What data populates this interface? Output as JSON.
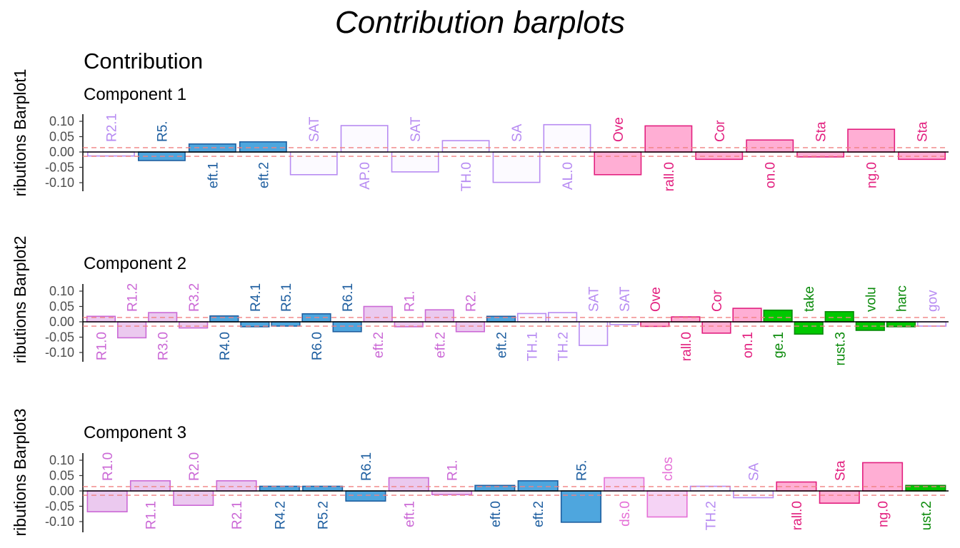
{
  "title": "Contribution barplots",
  "subtitle": "Contribution",
  "colors": {
    "lavender": "#b78bf2",
    "blue": "#1f5fa0",
    "pink": "#e2207f",
    "orchid": "#cb69d6",
    "green": "#0a8a0a",
    "rose": "#e56fd6"
  },
  "chart_data": [
    {
      "type": "bar",
      "panel_title": "Component 1",
      "ylabel": "ributions Barplot1",
      "yticks": [
        "0.10",
        "0.05",
        "0.00",
        "-0.05",
        "-0.10"
      ],
      "ylim": [
        -0.13,
        0.12
      ],
      "threshold": 0.014,
      "bars": [
        {
          "label": "R2.1",
          "value": -0.013,
          "color": "lavender"
        },
        {
          "label": "R5.",
          "value": -0.028,
          "color": "blue"
        },
        {
          "label": "eft.1",
          "value": 0.026,
          "color": "blue"
        },
        {
          "label": "eft.2",
          "value": 0.033,
          "color": "blue"
        },
        {
          "label": "SAT",
          "value": -0.074,
          "color": "lavender"
        },
        {
          "label": "AP.0",
          "value": 0.086,
          "color": "lavender"
        },
        {
          "label": "SAT",
          "value": -0.065,
          "color": "lavender"
        },
        {
          "label": "TH.0",
          "value": 0.037,
          "color": "lavender"
        },
        {
          "label": "SA",
          "value": -0.099,
          "color": "lavender"
        },
        {
          "label": "AL.0",
          "value": 0.089,
          "color": "lavender"
        },
        {
          "label": "Ove",
          "value": -0.074,
          "color": "pink"
        },
        {
          "label": "rall.0",
          "value": 0.085,
          "color": "pink"
        },
        {
          "label": "Cor",
          "value": -0.024,
          "color": "pink"
        },
        {
          "label": "on.0",
          "value": 0.039,
          "color": "pink"
        },
        {
          "label": "Sta",
          "value": -0.016,
          "color": "pink"
        },
        {
          "label": "ng.0",
          "value": 0.074,
          "color": "pink"
        },
        {
          "label": "Sta",
          "value": -0.024,
          "color": "pink"
        }
      ]
    },
    {
      "type": "bar",
      "panel_title": "Component 2",
      "ylabel": "ributions Barplot2",
      "yticks": [
        "0.10",
        "0.05",
        "0.00",
        "-0.05",
        "-0.10"
      ],
      "ylim": [
        -0.13,
        0.12
      ],
      "threshold": 0.014,
      "bars": [
        {
          "label": "R1.0",
          "value": 0.018,
          "color": "orchid"
        },
        {
          "label": "R1.2",
          "value": -0.052,
          "color": "orchid"
        },
        {
          "label": "R3.0",
          "value": 0.03,
          "color": "orchid"
        },
        {
          "label": "R3.2",
          "value": -0.02,
          "color": "orchid"
        },
        {
          "label": "R4.0",
          "value": 0.019,
          "color": "blue"
        },
        {
          "label": "R4.1",
          "value": -0.016,
          "color": "blue"
        },
        {
          "label": "R5.1",
          "value": -0.014,
          "color": "blue"
        },
        {
          "label": "R6.0",
          "value": 0.026,
          "color": "blue"
        },
        {
          "label": "R6.1",
          "value": -0.032,
          "color": "blue"
        },
        {
          "label": "eft.2",
          "value": 0.05,
          "color": "orchid"
        },
        {
          "label": "R1.",
          "value": -0.016,
          "color": "orchid"
        },
        {
          "label": "eft.2",
          "value": 0.039,
          "color": "orchid"
        },
        {
          "label": "R2.",
          "value": -0.032,
          "color": "orchid"
        },
        {
          "label": "eft.2",
          "value": 0.018,
          "color": "blue"
        },
        {
          "label": "TH.1",
          "value": 0.027,
          "color": "lavender"
        },
        {
          "label": "TH.2",
          "value": 0.03,
          "color": "lavender"
        },
        {
          "label": "SAT",
          "value": -0.077,
          "color": "lavender"
        },
        {
          "label": "SAT",
          "value": -0.009,
          "color": "lavender"
        },
        {
          "label": "Ove",
          "value": -0.015,
          "color": "pink"
        },
        {
          "label": "rall.0",
          "value": 0.016,
          "color": "pink"
        },
        {
          "label": "Cor",
          "value": -0.037,
          "color": "pink"
        },
        {
          "label": "on.1",
          "value": 0.044,
          "color": "pink"
        },
        {
          "label": "ge.1",
          "value": 0.038,
          "color": "green"
        },
        {
          "label": "take",
          "value": -0.04,
          "color": "green"
        },
        {
          "label": "rust.3",
          "value": 0.033,
          "color": "green"
        },
        {
          "label": "volu",
          "value": -0.028,
          "color": "green"
        },
        {
          "label": "harc",
          "value": -0.016,
          "color": "green"
        },
        {
          "label": "gov",
          "value": -0.014,
          "color": "lavender"
        }
      ]
    },
    {
      "type": "bar",
      "panel_title": "Component 3",
      "ylabel": "ributions Barplot3",
      "yticks": [
        "0.10",
        "0.05",
        "0.00",
        "-0.05",
        "-0.10"
      ],
      "ylim": [
        -0.13,
        0.12
      ],
      "threshold": 0.014,
      "bars": [
        {
          "label": "R1.0",
          "value": -0.068,
          "color": "orchid"
        },
        {
          "label": "R1.1",
          "value": 0.033,
          "color": "orchid"
        },
        {
          "label": "R2.0",
          "value": -0.047,
          "color": "orchid"
        },
        {
          "label": "R2.1",
          "value": 0.033,
          "color": "orchid"
        },
        {
          "label": "R4.2",
          "value": 0.015,
          "color": "blue"
        },
        {
          "label": "R5.2",
          "value": 0.015,
          "color": "blue"
        },
        {
          "label": "R6.1",
          "value": -0.033,
          "color": "blue"
        },
        {
          "label": "eft.1",
          "value": 0.043,
          "color": "orchid"
        },
        {
          "label": "R1.",
          "value": -0.012,
          "color": "orchid"
        },
        {
          "label": "eft.0",
          "value": 0.018,
          "color": "blue"
        },
        {
          "label": "eft.2",
          "value": 0.033,
          "color": "blue"
        },
        {
          "label": "R5.",
          "value": -0.102,
          "color": "blue"
        },
        {
          "label": "ds.0",
          "value": 0.043,
          "color": "rose"
        },
        {
          "label": "clos",
          "value": -0.085,
          "color": "rose"
        },
        {
          "label": "TH.2",
          "value": 0.015,
          "color": "lavender"
        },
        {
          "label": "SA",
          "value": -0.022,
          "color": "lavender"
        },
        {
          "label": "rall.0",
          "value": 0.029,
          "color": "pink"
        },
        {
          "label": "Sta",
          "value": -0.04,
          "color": "pink"
        },
        {
          "label": "ng.0",
          "value": 0.092,
          "color": "pink"
        },
        {
          "label": "ust.2",
          "value": 0.018,
          "color": "green"
        }
      ]
    }
  ]
}
